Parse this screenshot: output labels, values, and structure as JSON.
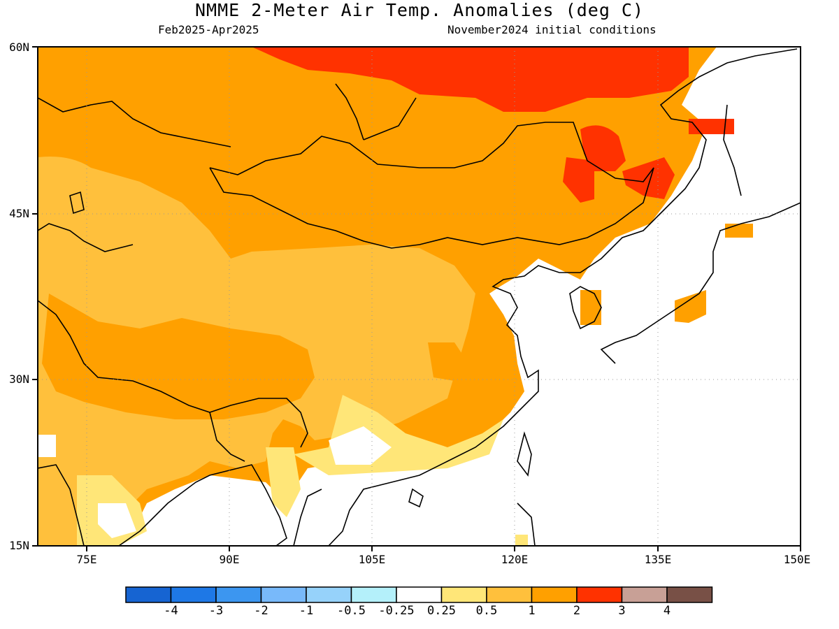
{
  "title": "NMME 2-Meter Air Temp. Anomalies (deg C)",
  "subtitle_left": "Feb2025-Apr2025",
  "subtitle_right": "November2024 initial conditions",
  "lat_labels": [
    "60N",
    "45N",
    "30N",
    "15N"
  ],
  "lon_labels": [
    "75E",
    "90E",
    "105E",
    "120E",
    "135E",
    "150E"
  ],
  "colorbar": {
    "colors": [
      "#1664d2",
      "#1e78e6",
      "#3c96f0",
      "#78b9fa",
      "#96d2fa",
      "#b4f0fa",
      "#ffffff",
      "#ffe678",
      "#ffc03c",
      "#ffa000",
      "#ff3200",
      "#c8a096",
      "#785046"
    ],
    "labels": [
      "-4",
      "-3",
      "-2",
      "-1",
      "-0.5",
      "-0.25",
      "0.25",
      "0.5",
      "1",
      "2",
      "3",
      "4"
    ]
  }
}
